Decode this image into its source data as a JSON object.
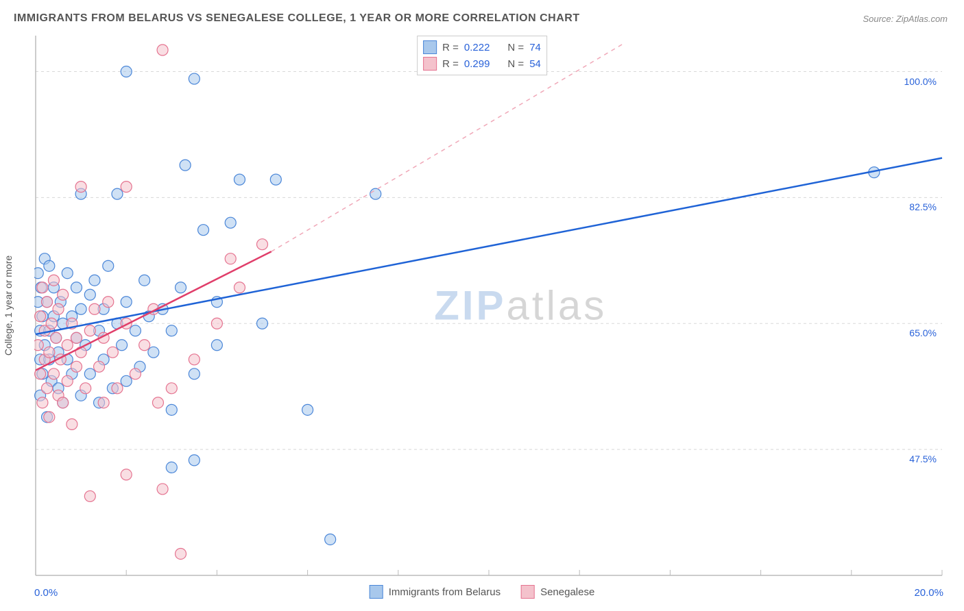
{
  "title": "IMMIGRANTS FROM BELARUS VS SENEGALESE COLLEGE, 1 YEAR OR MORE CORRELATION CHART",
  "source": "Source: ZipAtlas.com",
  "y_axis_label": "College, 1 year or more",
  "watermark": {
    "part1": "ZIP",
    "part2": "atlas"
  },
  "chart": {
    "type": "scatter",
    "background_color": "#ffffff",
    "grid_color": "#d8d8d8",
    "axis_color": "#bbbbbb",
    "tick_color": "#bbbbbb",
    "xlim": [
      0,
      20
    ],
    "ylim": [
      30,
      105
    ],
    "x_ticks": [
      0,
      2,
      4,
      6,
      8,
      10,
      12,
      14,
      16,
      18,
      20
    ],
    "x_tick_labels": {
      "start": "0.0%",
      "end": "20.0%"
    },
    "y_gridlines": [
      47.5,
      65.0,
      82.5,
      100.0
    ],
    "y_tick_labels": [
      "47.5%",
      "65.0%",
      "82.5%",
      "100.0%"
    ],
    "marker_radius": 8,
    "marker_opacity": 0.55,
    "marker_stroke_width": 1.2,
    "series": [
      {
        "name": "Immigrants from Belarus",
        "color_fill": "#a8c8ec",
        "color_stroke": "#4a86d8",
        "R": "0.222",
        "N": "74",
        "regression": {
          "x1": 0,
          "y1": 63.5,
          "x2": 20,
          "y2": 88.0,
          "dashed": false,
          "stroke": "#1f63d6",
          "width": 2.5
        },
        "points": [
          [
            0.05,
            68
          ],
          [
            0.05,
            72
          ],
          [
            0.1,
            64
          ],
          [
            0.1,
            60
          ],
          [
            0.1,
            55
          ],
          [
            0.12,
            70
          ],
          [
            0.15,
            66
          ],
          [
            0.15,
            58
          ],
          [
            0.2,
            74
          ],
          [
            0.2,
            62
          ],
          [
            0.25,
            52
          ],
          [
            0.25,
            68
          ],
          [
            0.3,
            64
          ],
          [
            0.3,
            60
          ],
          [
            0.3,
            73
          ],
          [
            0.35,
            57
          ],
          [
            0.4,
            66
          ],
          [
            0.4,
            70
          ],
          [
            0.45,
            63
          ],
          [
            0.5,
            61
          ],
          [
            0.5,
            56
          ],
          [
            0.55,
            68
          ],
          [
            0.6,
            65
          ],
          [
            0.6,
            54
          ],
          [
            0.7,
            72
          ],
          [
            0.7,
            60
          ],
          [
            0.8,
            66
          ],
          [
            0.8,
            58
          ],
          [
            0.9,
            63
          ],
          [
            0.9,
            70
          ],
          [
            1.0,
            67
          ],
          [
            1.0,
            55
          ],
          [
            1.0,
            83
          ],
          [
            1.1,
            62
          ],
          [
            1.2,
            69
          ],
          [
            1.2,
            58
          ],
          [
            1.3,
            71
          ],
          [
            1.4,
            64
          ],
          [
            1.4,
            54
          ],
          [
            1.5,
            67
          ],
          [
            1.5,
            60
          ],
          [
            1.6,
            73
          ],
          [
            1.7,
            56
          ],
          [
            1.8,
            65
          ],
          [
            1.8,
            83
          ],
          [
            1.9,
            62
          ],
          [
            2.0,
            68
          ],
          [
            2.0,
            57
          ],
          [
            2.0,
            100
          ],
          [
            2.2,
            64
          ],
          [
            2.3,
            59
          ],
          [
            2.4,
            71
          ],
          [
            2.5,
            66
          ],
          [
            2.6,
            61
          ],
          [
            2.8,
            67
          ],
          [
            3.0,
            64
          ],
          [
            3.0,
            45
          ],
          [
            3.0,
            53
          ],
          [
            3.2,
            70
          ],
          [
            3.3,
            87
          ],
          [
            3.5,
            99
          ],
          [
            3.5,
            46
          ],
          [
            3.5,
            58
          ],
          [
            3.7,
            78
          ],
          [
            4.0,
            68
          ],
          [
            4.0,
            62
          ],
          [
            4.3,
            79
          ],
          [
            4.5,
            85
          ],
          [
            5.0,
            65
          ],
          [
            5.3,
            85
          ],
          [
            6.0,
            53
          ],
          [
            6.5,
            35
          ],
          [
            7.5,
            83
          ],
          [
            18.5,
            86
          ]
        ]
      },
      {
        "name": "Senegalese",
        "color_fill": "#f4c2cc",
        "color_stroke": "#e57390",
        "R": "0.299",
        "N": "54",
        "regression": {
          "x1": 0,
          "y1": 58.5,
          "x2": 5.2,
          "y2": 75.0,
          "dashed": false,
          "stroke": "#e03e6a",
          "width": 2.5
        },
        "regression_extend": {
          "x1": 5.2,
          "y1": 75.0,
          "x2": 13.0,
          "y2": 104.0,
          "dashed": true,
          "stroke": "#f0a8b8",
          "width": 1.5
        },
        "points": [
          [
            0.05,
            62
          ],
          [
            0.1,
            58
          ],
          [
            0.1,
            66
          ],
          [
            0.15,
            54
          ],
          [
            0.15,
            70
          ],
          [
            0.2,
            60
          ],
          [
            0.2,
            64
          ],
          [
            0.25,
            56
          ],
          [
            0.25,
            68
          ],
          [
            0.3,
            61
          ],
          [
            0.3,
            52
          ],
          [
            0.35,
            65
          ],
          [
            0.4,
            58
          ],
          [
            0.4,
            71
          ],
          [
            0.45,
            63
          ],
          [
            0.5,
            55
          ],
          [
            0.5,
            67
          ],
          [
            0.55,
            60
          ],
          [
            0.6,
            54
          ],
          [
            0.6,
            69
          ],
          [
            0.7,
            62
          ],
          [
            0.7,
            57
          ],
          [
            0.8,
            65
          ],
          [
            0.8,
            51
          ],
          [
            0.9,
            63
          ],
          [
            0.9,
            59
          ],
          [
            1.0,
            84
          ],
          [
            1.0,
            61
          ],
          [
            1.1,
            56
          ],
          [
            1.2,
            64
          ],
          [
            1.2,
            41
          ],
          [
            1.3,
            67
          ],
          [
            1.4,
            59
          ],
          [
            1.5,
            63
          ],
          [
            1.5,
            54
          ],
          [
            1.6,
            68
          ],
          [
            1.7,
            61
          ],
          [
            1.8,
            56
          ],
          [
            2.0,
            65
          ],
          [
            2.0,
            44
          ],
          [
            2.0,
            84
          ],
          [
            2.2,
            58
          ],
          [
            2.4,
            62
          ],
          [
            2.6,
            67
          ],
          [
            2.7,
            54
          ],
          [
            2.8,
            42
          ],
          [
            3.0,
            56
          ],
          [
            3.2,
            33
          ],
          [
            3.5,
            60
          ],
          [
            4.0,
            65
          ],
          [
            4.3,
            74
          ],
          [
            4.5,
            70
          ],
          [
            5.0,
            76
          ],
          [
            2.8,
            103
          ]
        ]
      }
    ]
  },
  "legend": {
    "items": [
      {
        "label": "Immigrants from Belarus",
        "fill": "#a8c8ec",
        "stroke": "#4a86d8"
      },
      {
        "label": "Senegalese",
        "fill": "#f4c2cc",
        "stroke": "#e57390"
      }
    ]
  },
  "stats_labels": {
    "R": "R =",
    "N": "N ="
  }
}
